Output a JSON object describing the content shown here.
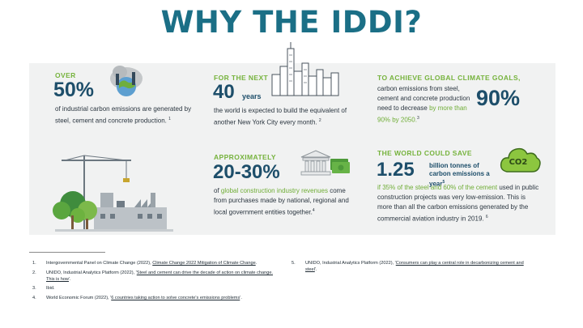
{
  "title": "WHY THE IDDI?",
  "stats": {
    "s1": {
      "kicker": "OVER",
      "value": "50%",
      "text": "of industrial carbon emissions are generated by steel, cement and concrete production.",
      "ref": "1"
    },
    "s2": {
      "kicker": "FOR THE NEXT",
      "value": "40",
      "unit": "years",
      "text": "the world is expected to build the equivalent of another New York City every month.",
      "ref": "2"
    },
    "s3": {
      "kicker": "TO ACHIEVE GLOBAL CLIMATE GOALS,",
      "text": "carbon emissions from steel, cement and concrete production need to decrease",
      "highlight": "by more than 90% by 2050.",
      "ref": "3",
      "value": "90%"
    },
    "s4": {
      "kicker": "APPROXIMATELY",
      "value": "20-30%",
      "text_pre": "of",
      "highlight": "global construction industry revenues",
      "text": "come from purchases made by national, regional and local government entities together.",
      "ref": "4"
    },
    "s5": {
      "kicker": "THE WORLD COULD SAVE",
      "value": "1.25",
      "unit": "billion tonnes of carbon emissions a year",
      "unit_ref": "5",
      "highlight": "if 35% of the steel and 60% of the cement",
      "text": "used in public construction projects was very low-emission. This is more than all the carbon emissions generated by the commercial aviation industry in 2019.",
      "ref": "6"
    }
  },
  "icons": {
    "co2_label": "CO2"
  },
  "footnotes": [
    {
      "num": "1.",
      "text": "Intergovernmental Panel on Climate Change (2022), ",
      "link": "Climate Change 2022 Mitigation of Climate Change",
      "after": "."
    },
    {
      "num": "2.",
      "text": "UNIDO, Industrial Analytics Platform (2022), '",
      "link": "Steel and cement can drive the decade of action on climate change. This is how",
      "after": "'."
    },
    {
      "num": "3.",
      "text": "Ibid.",
      "link": "",
      "after": ""
    },
    {
      "num": "4.",
      "text": "World Economic Forum (2022), '",
      "link": "6 countries taking action to solve concrete's emissions problems",
      "after": "'."
    },
    {
      "num": "5.",
      "text": "UNIDO, Industrial Analytics Platform (2022), '",
      "link": "Consumers can play a central role in decarbonizing cement and steel",
      "after": "'."
    }
  ],
  "colors": {
    "title": "#1b6f86",
    "accent_green": "#76b33d",
    "value_navy": "#1d4e6a",
    "panel": "#f1f2f2"
  }
}
